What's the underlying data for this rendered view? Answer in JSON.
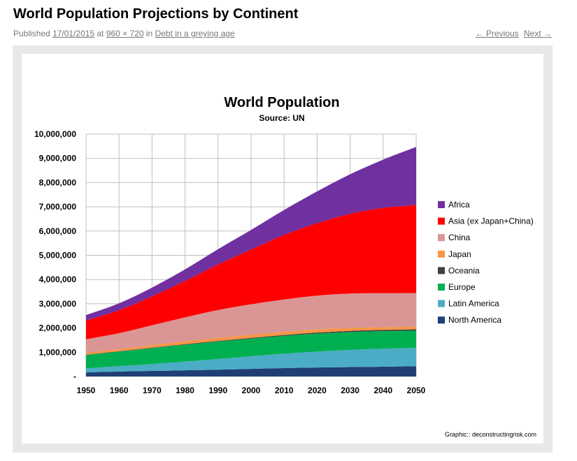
{
  "post": {
    "title": "World Population Projections by Continent",
    "published_label": "Published",
    "date": "17/01/2015",
    "at_label": "at",
    "dimensions": "960 × 720",
    "in_label": "in",
    "category": "Debt in a greying age"
  },
  "nav": {
    "previous": "← Previous",
    "next": "Next →"
  },
  "chart_data": {
    "type": "area",
    "stacked": true,
    "title": "World Population",
    "subtitle": "Source: UN",
    "credit": "Graphic:: deconstructingrisk.com",
    "x": [
      1950,
      1960,
      1970,
      1980,
      1990,
      2000,
      2010,
      2020,
      2030,
      2040,
      2050
    ],
    "xlim": [
      1950,
      2050
    ],
    "ylim": [
      0,
      10000000
    ],
    "y_ticks": [
      {
        "value": 0,
        "label": "-"
      },
      {
        "value": 1000000,
        "label": "1,000,000"
      },
      {
        "value": 2000000,
        "label": "2,000,000"
      },
      {
        "value": 3000000,
        "label": "3,000,000"
      },
      {
        "value": 4000000,
        "label": "4,000,000"
      },
      {
        "value": 5000000,
        "label": "5,000,000"
      },
      {
        "value": 6000000,
        "label": "6,000,000"
      },
      {
        "value": 7000000,
        "label": "7,000,000"
      },
      {
        "value": 8000000,
        "label": "8,000,000"
      },
      {
        "value": 9000000,
        "label": "9,000,000"
      },
      {
        "value": 10000000,
        "label": "10,000,000"
      }
    ],
    "x_ticks": [
      "1950",
      "1960",
      "1970",
      "1980",
      "1990",
      "2000",
      "2010",
      "2020",
      "2030",
      "2040",
      "2050"
    ],
    "grid": true,
    "legend_position": "right",
    "series": [
      {
        "name": "North America",
        "color": "#1f3f74",
        "values": [
          170000,
          205000,
          230000,
          255000,
          280000,
          315000,
          345000,
          370000,
          390000,
          405000,
          420000
        ]
      },
      {
        "name": "Latin America",
        "color": "#4bacc6",
        "values": [
          165000,
          220000,
          285000,
          360000,
          440000,
          520000,
          595000,
          655000,
          705000,
          740000,
          760000
        ]
      },
      {
        "name": "Europe",
        "color": "#00b050",
        "values": [
          550000,
          600000,
          655000,
          695000,
          720000,
          725000,
          735000,
          745000,
          740000,
          725000,
          710000
        ]
      },
      {
        "name": "Oceania",
        "color": "#404040",
        "values": [
          13000,
          16000,
          20000,
          23000,
          27000,
          31000,
          36000,
          42000,
          47000,
          52000,
          57000
        ]
      },
      {
        "name": "Japan",
        "color": "#f79646",
        "values": [
          83000,
          94000,
          104000,
          117000,
          124000,
          127000,
          128000,
          125000,
          120000,
          113000,
          107000
        ]
      },
      {
        "name": "China",
        "color": "#d99694",
        "values": [
          554000,
          650000,
          820000,
          990000,
          1150000,
          1260000,
          1340000,
          1400000,
          1420000,
          1400000,
          1385000
        ]
      },
      {
        "name": "Asia (ex Japan+China)",
        "color": "#ff0000",
        "values": [
          770000,
          950000,
          1190000,
          1500000,
          1880000,
          2260000,
          2660000,
          2990000,
          3290000,
          3520000,
          3640000
        ]
      },
      {
        "name": "Africa",
        "color": "#7030a0",
        "values": [
          230000,
          285000,
          365000,
          480000,
          630000,
          810000,
          1030000,
          1310000,
          1630000,
          1990000,
          2390000
        ]
      }
    ]
  }
}
